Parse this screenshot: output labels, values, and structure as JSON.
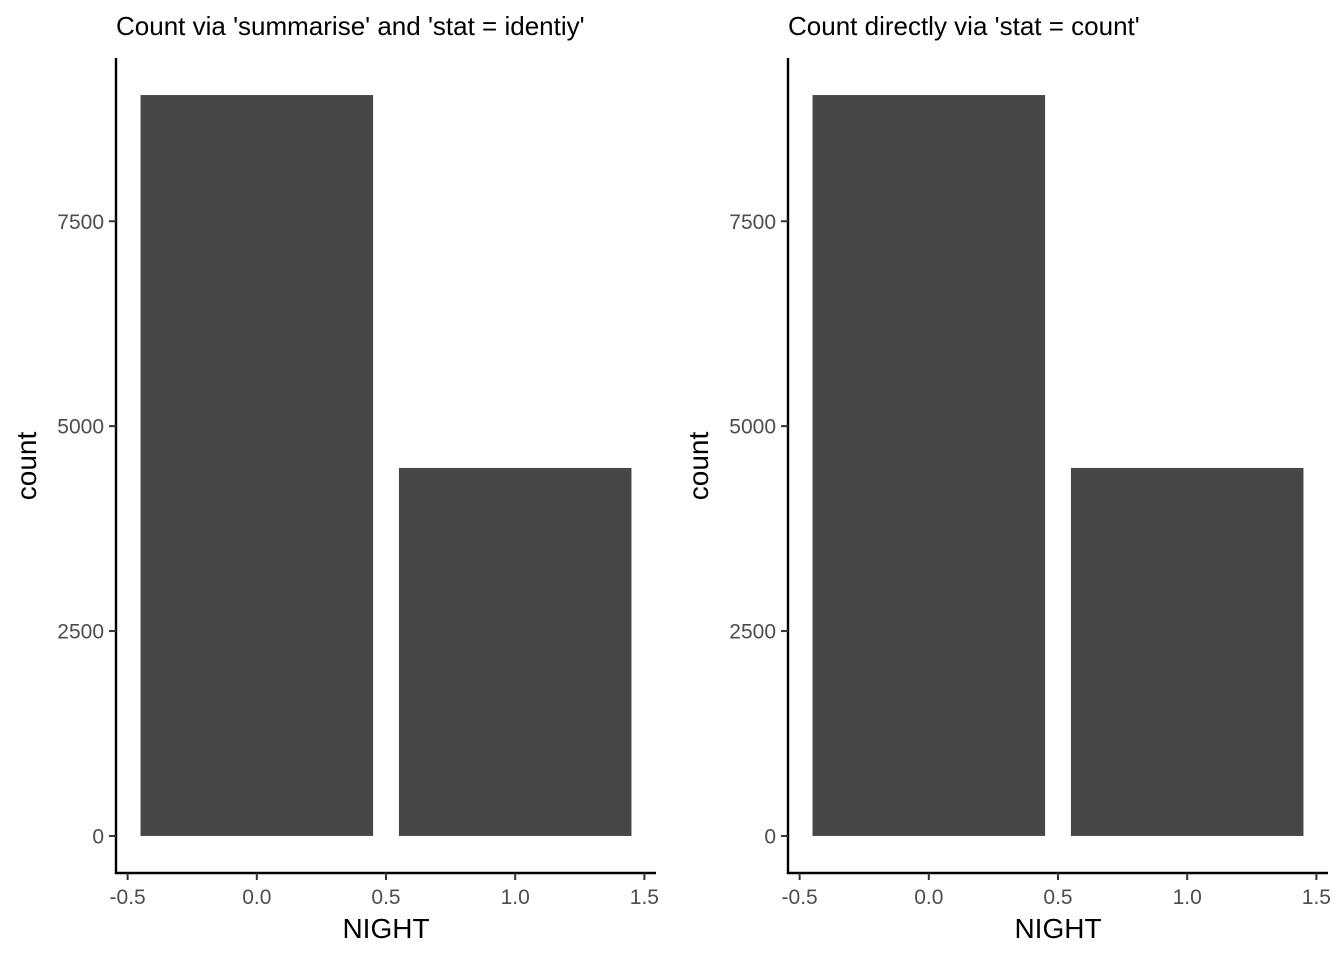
{
  "chart_data": [
    {
      "type": "bar",
      "title": "Count via 'summarise' and 'stat = identiy'",
      "xlabel": "NIGHT",
      "ylabel": "count",
      "x": [
        0,
        1
      ],
      "values": [
        9040,
        4490
      ],
      "bar_width": 0.9,
      "bar_color": "#474747",
      "xlim": [
        -0.545,
        1.545
      ],
      "ylim": [
        -452,
        9492
      ],
      "x_ticks": [
        -0.5,
        0.0,
        0.5,
        1.0,
        1.5
      ],
      "x_tick_labels": [
        "-0.5",
        "0.0",
        "0.5",
        "1.0",
        "1.5"
      ],
      "y_ticks": [
        0,
        2500,
        5000,
        7500
      ],
      "y_tick_labels": [
        "0",
        "2500",
        "5000",
        "7500"
      ],
      "grid": false,
      "legend": "none"
    },
    {
      "type": "bar",
      "title": "Count directly via 'stat = count'",
      "xlabel": "NIGHT",
      "ylabel": "count",
      "x": [
        0,
        1
      ],
      "values": [
        9040,
        4490
      ],
      "bar_width": 0.9,
      "bar_color": "#474747",
      "xlim": [
        -0.545,
        1.545
      ],
      "ylim": [
        -452,
        9492
      ],
      "x_ticks": [
        -0.5,
        0.0,
        0.5,
        1.0,
        1.5
      ],
      "x_tick_labels": [
        "-0.5",
        "0.0",
        "0.5",
        "1.0",
        "1.5"
      ],
      "y_ticks": [
        0,
        2500,
        5000,
        7500
      ],
      "y_tick_labels": [
        "0",
        "2500",
        "5000",
        "7500"
      ],
      "grid": false,
      "legend": "none"
    }
  ]
}
